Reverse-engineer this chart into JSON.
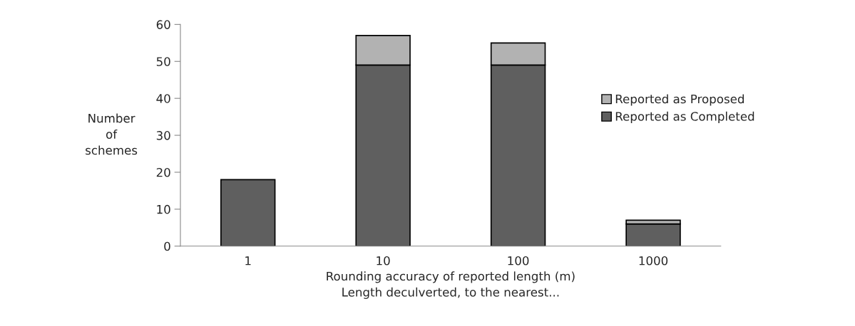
{
  "chart_data": {
    "type": "bar",
    "stacked": true,
    "categories": [
      "1",
      "10",
      "100",
      "1000"
    ],
    "series": [
      {
        "name": "Reported as Completed",
        "color": "#5f5f5f",
        "values": [
          18,
          49,
          49,
          6
        ]
      },
      {
        "name": "Reported as Proposed",
        "color": "#b2b2b2",
        "values": [
          null,
          8,
          6,
          1
        ]
      }
    ],
    "xlabel": "Rounding accuracy of reported length (m)\nLength deculverted, to the nearest...",
    "ylabel": "Number\nof\nschemes",
    "ylim": [
      0,
      60
    ],
    "yticks": [
      0,
      10,
      20,
      30,
      40,
      50,
      60
    ],
    "grid": false,
    "legend": "right"
  }
}
